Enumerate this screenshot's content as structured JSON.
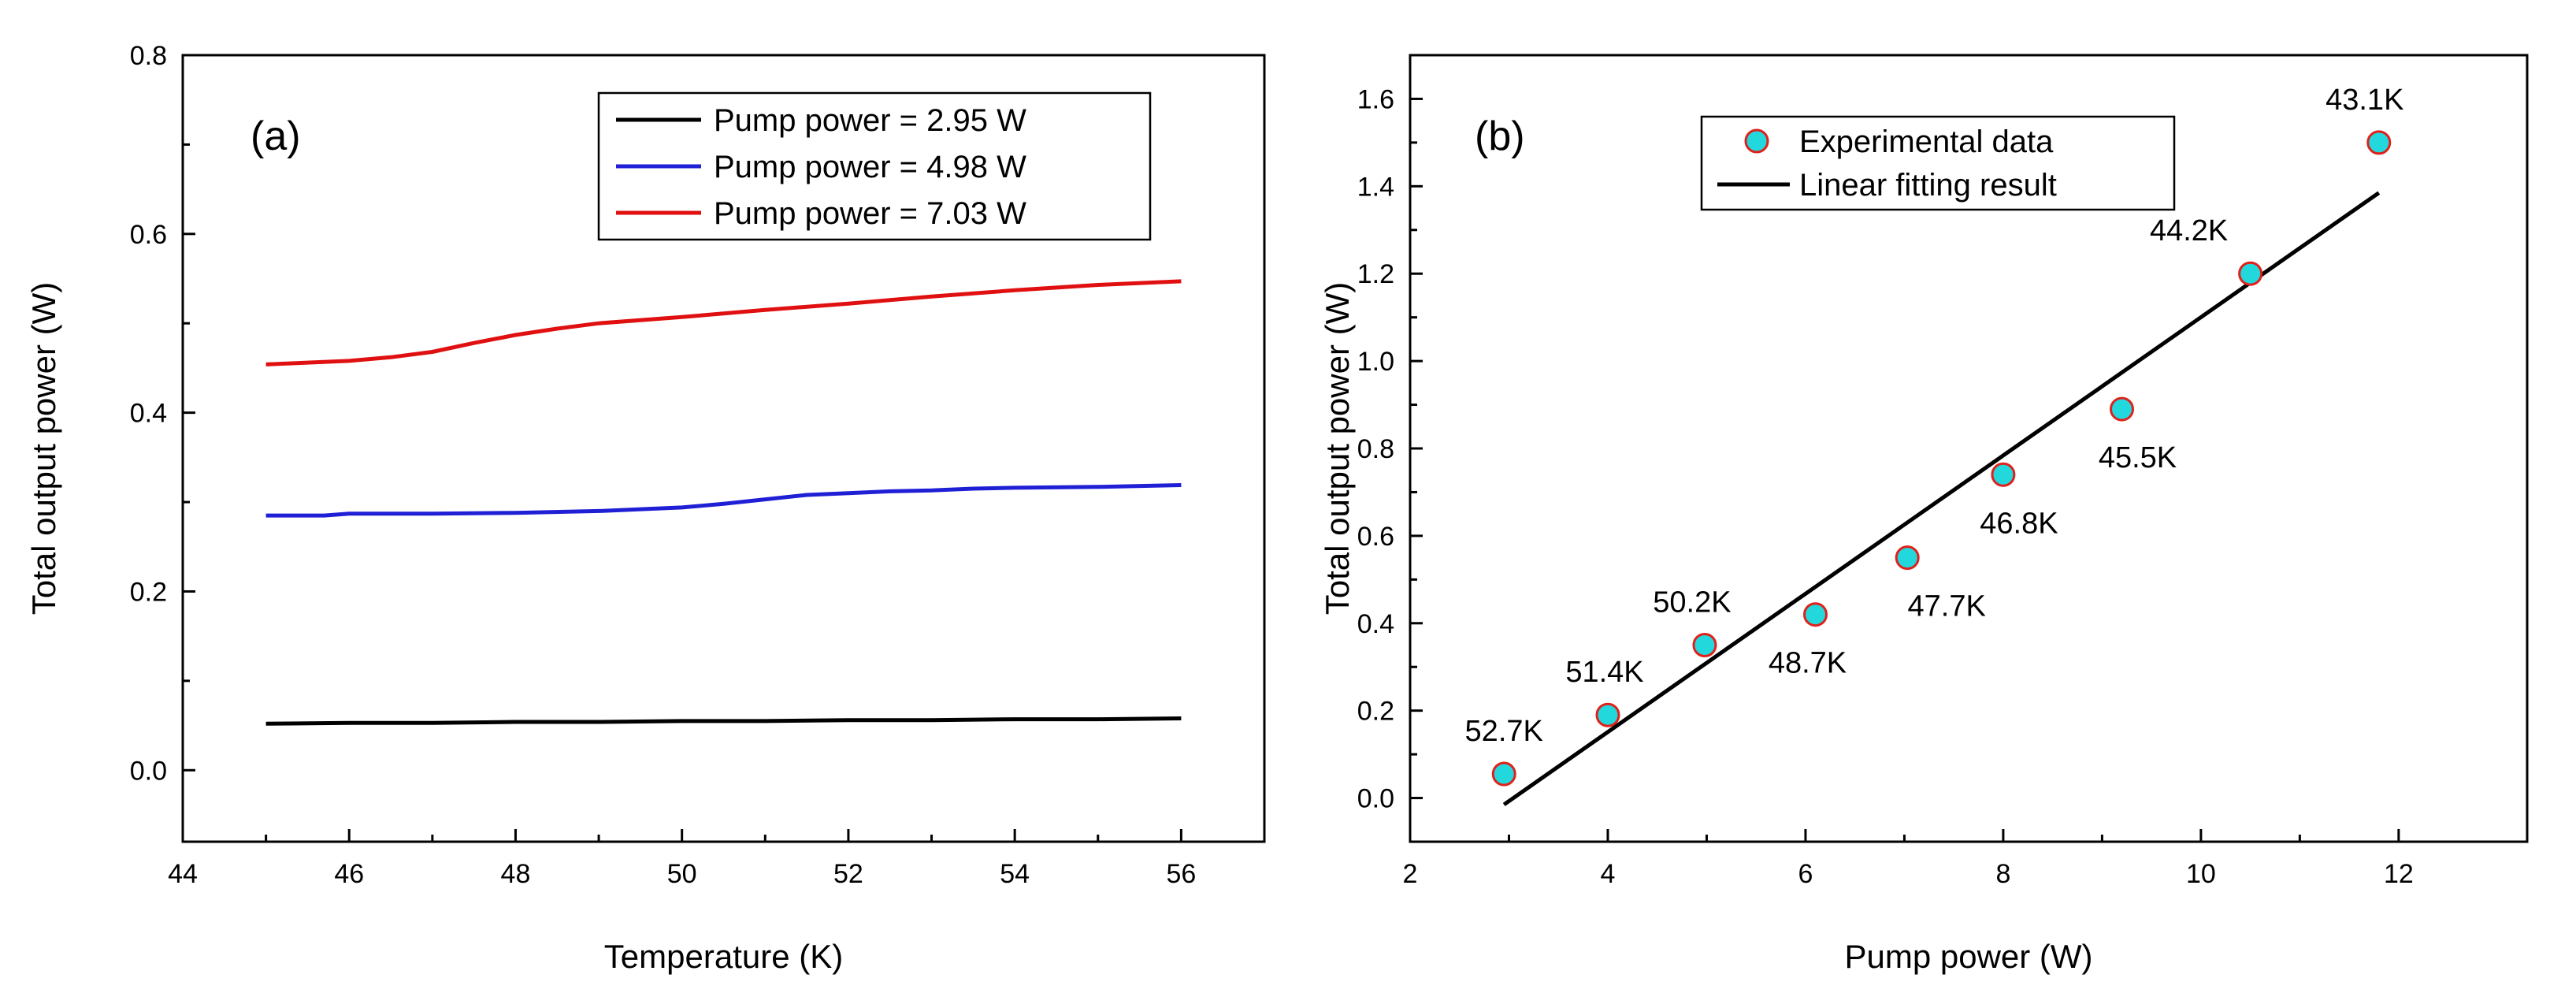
{
  "chart_data": [
    {
      "panel": "(a)",
      "type": "line",
      "xlabel": "Temperature (K)",
      "ylabel": "Total output power (W)",
      "xlim": [
        44,
        57
      ],
      "ylim": [
        -0.08,
        0.8
      ],
      "xticks": [
        44,
        46,
        48,
        50,
        52,
        54,
        56
      ],
      "yticks": [
        0.0,
        0.2,
        0.4,
        0.6,
        0.8
      ],
      "xtick_labels": [
        "44",
        "46",
        "48",
        "50",
        "52",
        "54",
        "56"
      ],
      "ytick_labels": [
        "0.0",
        "0.2",
        "0.4",
        "0.6",
        "0.8"
      ],
      "legend_position": "top-right",
      "series": [
        {
          "name": "Pump power = 2.95 W",
          "color": "#000000",
          "x": [
            45,
            46,
            47,
            48,
            49,
            50,
            51,
            52,
            53,
            54,
            55,
            56
          ],
          "y": [
            0.052,
            0.053,
            0.053,
            0.054,
            0.054,
            0.055,
            0.055,
            0.056,
            0.056,
            0.057,
            0.057,
            0.058
          ]
        },
        {
          "name": "Pump power = 4.98 W",
          "color": "#1f1fd6",
          "x": [
            45,
            45.7,
            46,
            47,
            48,
            49,
            50,
            50.5,
            51,
            51.5,
            52,
            52.5,
            53,
            53.5,
            54,
            55,
            56
          ],
          "y": [
            0.285,
            0.285,
            0.287,
            0.287,
            0.288,
            0.29,
            0.294,
            0.298,
            0.303,
            0.308,
            0.31,
            0.312,
            0.313,
            0.315,
            0.316,
            0.317,
            0.319
          ]
        },
        {
          "name": "Pump power = 7.03 W",
          "color": "#e01010",
          "x": [
            45,
            45.5,
            46,
            46.5,
            47,
            47.5,
            48,
            48.5,
            49,
            50,
            51,
            52,
            53,
            54,
            55,
            56
          ],
          "y": [
            0.454,
            0.456,
            0.458,
            0.462,
            0.468,
            0.478,
            0.487,
            0.494,
            0.5,
            0.507,
            0.515,
            0.522,
            0.53,
            0.537,
            0.543,
            0.547
          ]
        }
      ]
    },
    {
      "panel": "(b)",
      "type": "scatter",
      "xlabel": "Pump power (W)",
      "ylabel": "Total output power (W)",
      "xlim": [
        2,
        13.3
      ],
      "ylim": [
        -0.1,
        1.7
      ],
      "xticks": [
        2,
        4,
        6,
        8,
        10,
        12
      ],
      "yticks": [
        0.0,
        0.2,
        0.4,
        0.6,
        0.8,
        1.0,
        1.2,
        1.4,
        1.6
      ],
      "xtick_labels": [
        "2",
        "4",
        "6",
        "8",
        "10",
        "12"
      ],
      "ytick_labels": [
        "0.0",
        "0.2",
        "0.4",
        "0.6",
        "0.8",
        "1.0",
        "1.2",
        "1.4",
        "1.6"
      ],
      "legend_position": "top-left",
      "series": [
        {
          "name": "Experimental data",
          "marker_fill": "#22d8dc",
          "marker_edge": "#e0201a",
          "x": [
            2.95,
            4.0,
            4.98,
            6.1,
            7.03,
            8.0,
            9.2,
            10.5,
            11.8
          ],
          "y": [
            0.055,
            0.19,
            0.35,
            0.42,
            0.55,
            0.74,
            0.89,
            1.2,
            1.5
          ],
          "labels": [
            "52.7K",
            "51.4K",
            "50.2K",
            "48.7K",
            "47.7K",
            "46.8K",
            "45.5K",
            "44.2K",
            "43.1K"
          ]
        },
        {
          "name": "Linear fitting result",
          "color": "#000000",
          "x": [
            2.95,
            11.8
          ],
          "y": [
            -0.015,
            1.385
          ]
        }
      ]
    }
  ]
}
